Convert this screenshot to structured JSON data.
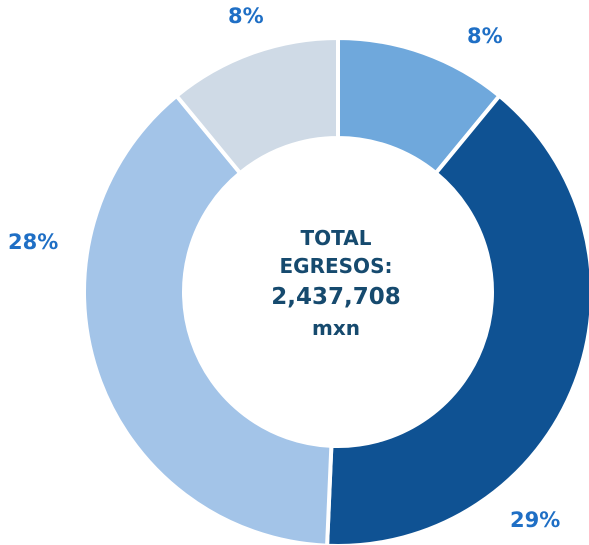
{
  "chart_data": {
    "type": "pie",
    "donut": true,
    "categories": [
      "",
      "",
      "",
      ""
    ],
    "values": [
      8,
      29,
      28,
      8
    ],
    "labels": [
      "8%",
      "29%",
      "28%",
      "8%"
    ],
    "colors": [
      "#6fa8dc",
      "#0f5293",
      "#a3c4e8",
      "#cfdae6"
    ],
    "label_color": "#1f6fc5",
    "center_text": {
      "line1": "TOTAL",
      "line2": "EGRESOS:",
      "amount": "2,437,708",
      "unit": "mxn"
    },
    "center_color": "#164a6e",
    "legend": "none"
  }
}
